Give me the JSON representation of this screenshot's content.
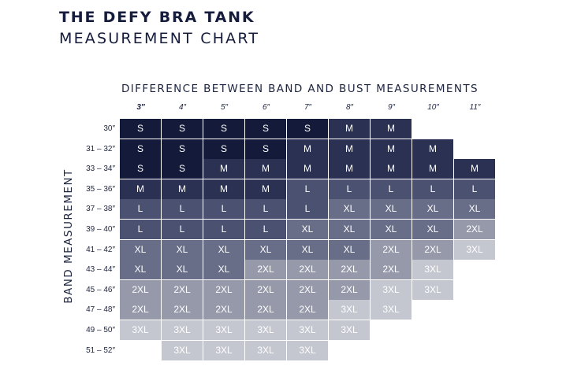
{
  "title": "THE DEFY BRA TANK",
  "subtitle": "MEASUREMENT CHART",
  "column_axis_label": "DIFFERENCE BETWEEN BAND AND BUST MEASUREMENTS",
  "row_axis_label": "BAND MEASUREMENT",
  "columns": [
    "3″",
    "4″",
    "5″",
    "6″",
    "7″",
    "8″",
    "9″",
    "10″",
    "11″"
  ],
  "size_colors": {
    "S": "#131a3a",
    "M": "#2a3152",
    "L": "#4b5170",
    "XL": "#686e88",
    "2XL": "#9599a9",
    "3XL": "#c5c7d0"
  },
  "rows": [
    {
      "band": "30″",
      "sizes": [
        "S",
        "S",
        "S",
        "S",
        "S",
        "M",
        "M",
        "",
        ""
      ]
    },
    {
      "band": "31 – 32″",
      "sizes": [
        "S",
        "S",
        "S",
        "S",
        "M",
        "M",
        "M",
        "M",
        ""
      ]
    },
    {
      "band": "33 – 34″",
      "sizes": [
        "S",
        "S",
        "M",
        "M",
        "M",
        "M",
        "M",
        "M",
        "M"
      ]
    },
    {
      "band": "35 – 36″",
      "sizes": [
        "M",
        "M",
        "M",
        "M",
        "L",
        "L",
        "L",
        "L",
        "L"
      ]
    },
    {
      "band": "37 – 38″",
      "sizes": [
        "L",
        "L",
        "L",
        "L",
        "L",
        "XL",
        "XL",
        "XL",
        "XL"
      ]
    },
    {
      "band": "39 – 40″",
      "sizes": [
        "L",
        "L",
        "L",
        "L",
        "XL",
        "XL",
        "XL",
        "XL",
        "2XL"
      ]
    },
    {
      "band": "41 – 42″",
      "sizes": [
        "XL",
        "XL",
        "XL",
        "XL",
        "XL",
        "XL",
        "2XL",
        "2XL",
        "3XL"
      ]
    },
    {
      "band": "43 – 44″",
      "sizes": [
        "XL",
        "XL",
        "XL",
        "2XL",
        "2XL",
        "2XL",
        "2XL",
        "3XL",
        ""
      ]
    },
    {
      "band": "45 – 46″",
      "sizes": [
        "2XL",
        "2XL",
        "2XL",
        "2XL",
        "2XL",
        "2XL",
        "3XL",
        "3XL",
        ""
      ]
    },
    {
      "band": "47 – 48″",
      "sizes": [
        "2XL",
        "2XL",
        "2XL",
        "2XL",
        "2XL",
        "3XL",
        "3XL",
        "",
        ""
      ]
    },
    {
      "band": "49 – 50″",
      "sizes": [
        "3XL",
        "3XL",
        "3XL",
        "3XL",
        "3XL",
        "3XL",
        "",
        "",
        ""
      ]
    },
    {
      "band": "51 – 52″",
      "sizes": [
        "",
        "3XL",
        "3XL",
        "3XL",
        "3XL",
        "",
        "",
        "",
        ""
      ]
    }
  ]
}
